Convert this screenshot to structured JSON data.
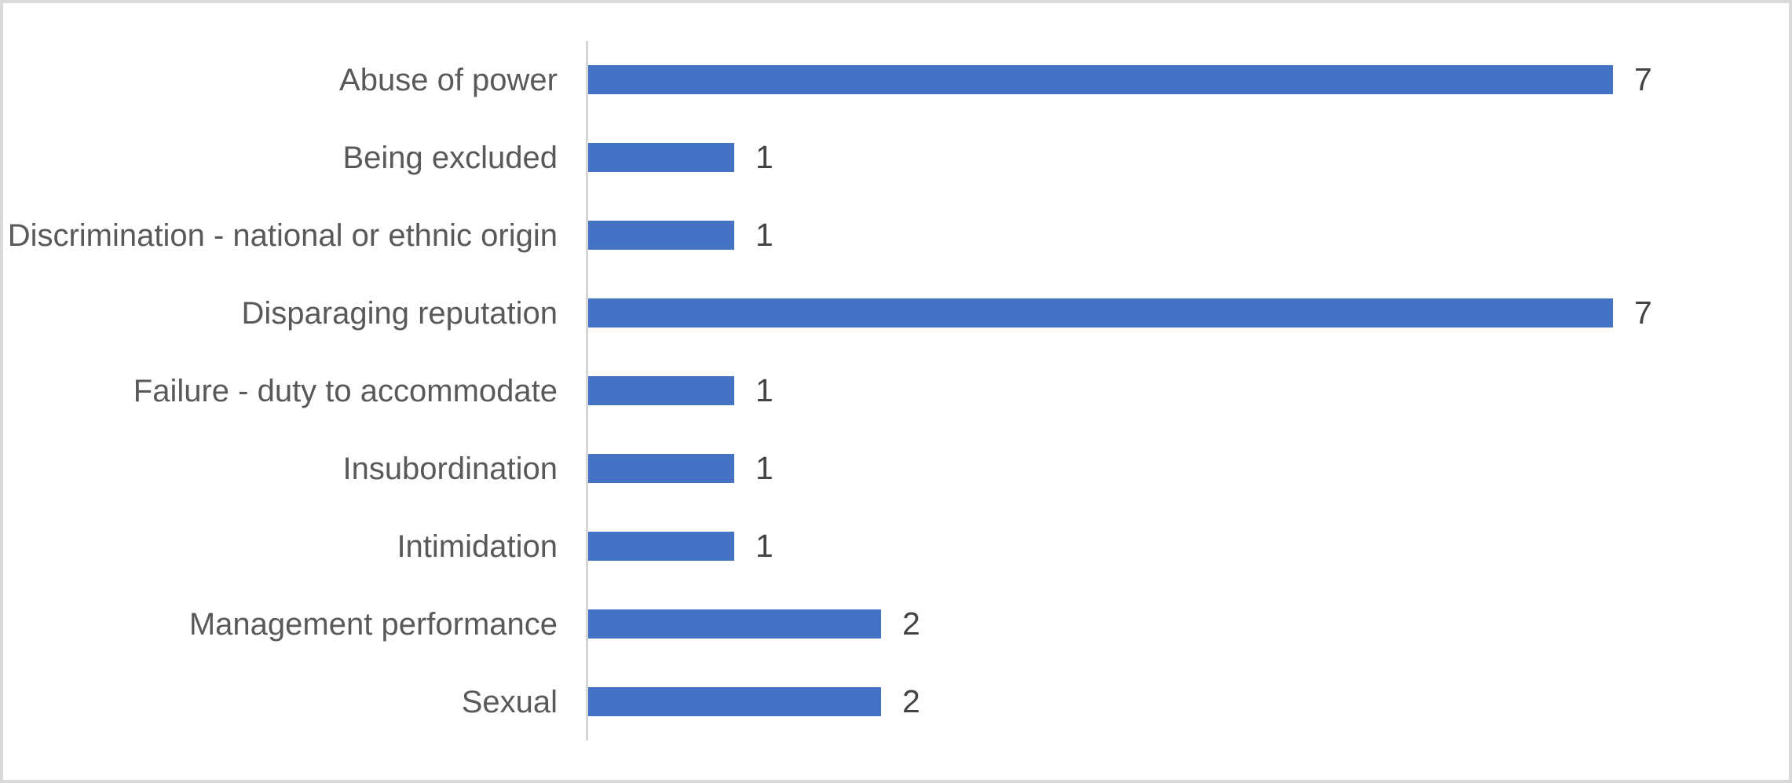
{
  "chart_data": {
    "type": "bar",
    "orientation": "horizontal",
    "title": "",
    "xlabel": "",
    "ylabel": "",
    "categories": [
      "Abuse of power",
      "Being excluded",
      "Discrimination - national or ethnic origin",
      "Disparaging reputation",
      "Failure - duty to accommodate",
      "Insubordination",
      "Intimidation",
      "Management performance",
      "Sexual"
    ],
    "values": [
      7,
      1,
      1,
      7,
      1,
      1,
      1,
      2,
      2
    ],
    "xlim": [
      0,
      8.2
    ],
    "grid": false,
    "legend": false,
    "data_labels_shown": true,
    "colors": {
      "bar": "#4472C4",
      "axis_line": "#D6D6D6",
      "category_label": "#595959",
      "value_label": "#444444",
      "background": "#FFFFFF",
      "frame_border": "#D9D9D9"
    }
  }
}
